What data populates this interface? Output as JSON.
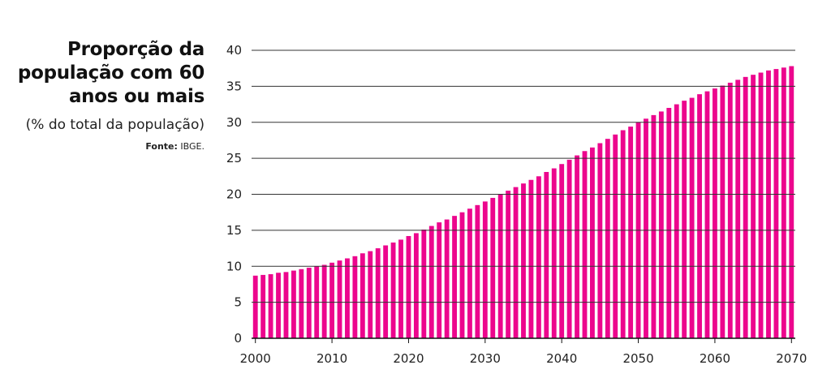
{
  "header": {
    "title": "Proporção da população com 60 anos ou mais",
    "subtitle": "(% do total da população)",
    "source_label": "Fonte:",
    "source_value": "IBGE."
  },
  "colors": {
    "bar": "#ec068d",
    "grid": "#333333",
    "axis": "#111111"
  },
  "chart_data": {
    "type": "bar",
    "title": "Proporção da população com 60 anos ou mais",
    "subtitle": "(% do total da população)",
    "xlabel": "",
    "ylabel": "",
    "ylim": [
      0,
      40
    ],
    "yticks": [
      0,
      5,
      10,
      15,
      20,
      25,
      30,
      35,
      40
    ],
    "xticks": [
      2000,
      2010,
      2020,
      2030,
      2040,
      2050,
      2060,
      2070
    ],
    "grid": true,
    "categories": [
      2000,
      2001,
      2002,
      2003,
      2004,
      2005,
      2006,
      2007,
      2008,
      2009,
      2010,
      2011,
      2012,
      2013,
      2014,
      2015,
      2016,
      2017,
      2018,
      2019,
      2020,
      2021,
      2022,
      2023,
      2024,
      2025,
      2026,
      2027,
      2028,
      2029,
      2030,
      2031,
      2032,
      2033,
      2034,
      2035,
      2036,
      2037,
      2038,
      2039,
      2040,
      2041,
      2042,
      2043,
      2044,
      2045,
      2046,
      2047,
      2048,
      2049,
      2050,
      2051,
      2052,
      2053,
      2054,
      2055,
      2056,
      2057,
      2058,
      2059,
      2060,
      2061,
      2062,
      2063,
      2064,
      2065,
      2066,
      2067,
      2068,
      2069,
      2070
    ],
    "values": [
      8.7,
      8.8,
      8.9,
      9.1,
      9.2,
      9.4,
      9.6,
      9.8,
      10.0,
      10.2,
      10.5,
      10.8,
      11.1,
      11.4,
      11.8,
      12.1,
      12.5,
      12.9,
      13.3,
      13.7,
      14.2,
      14.6,
      15.1,
      15.6,
      16.1,
      16.5,
      17.0,
      17.5,
      18.0,
      18.5,
      19.0,
      19.5,
      20.0,
      20.5,
      21.0,
      21.5,
      22.0,
      22.5,
      23.1,
      23.6,
      24.2,
      24.8,
      25.4,
      26.0,
      26.5,
      27.1,
      27.7,
      28.3,
      28.9,
      29.4,
      30.0,
      30.5,
      31.0,
      31.5,
      32.0,
      32.5,
      33.0,
      33.4,
      33.9,
      34.3,
      34.7,
      35.1,
      35.5,
      35.9,
      36.3,
      36.6,
      36.9,
      37.2,
      37.4,
      37.6,
      37.8
    ]
  }
}
